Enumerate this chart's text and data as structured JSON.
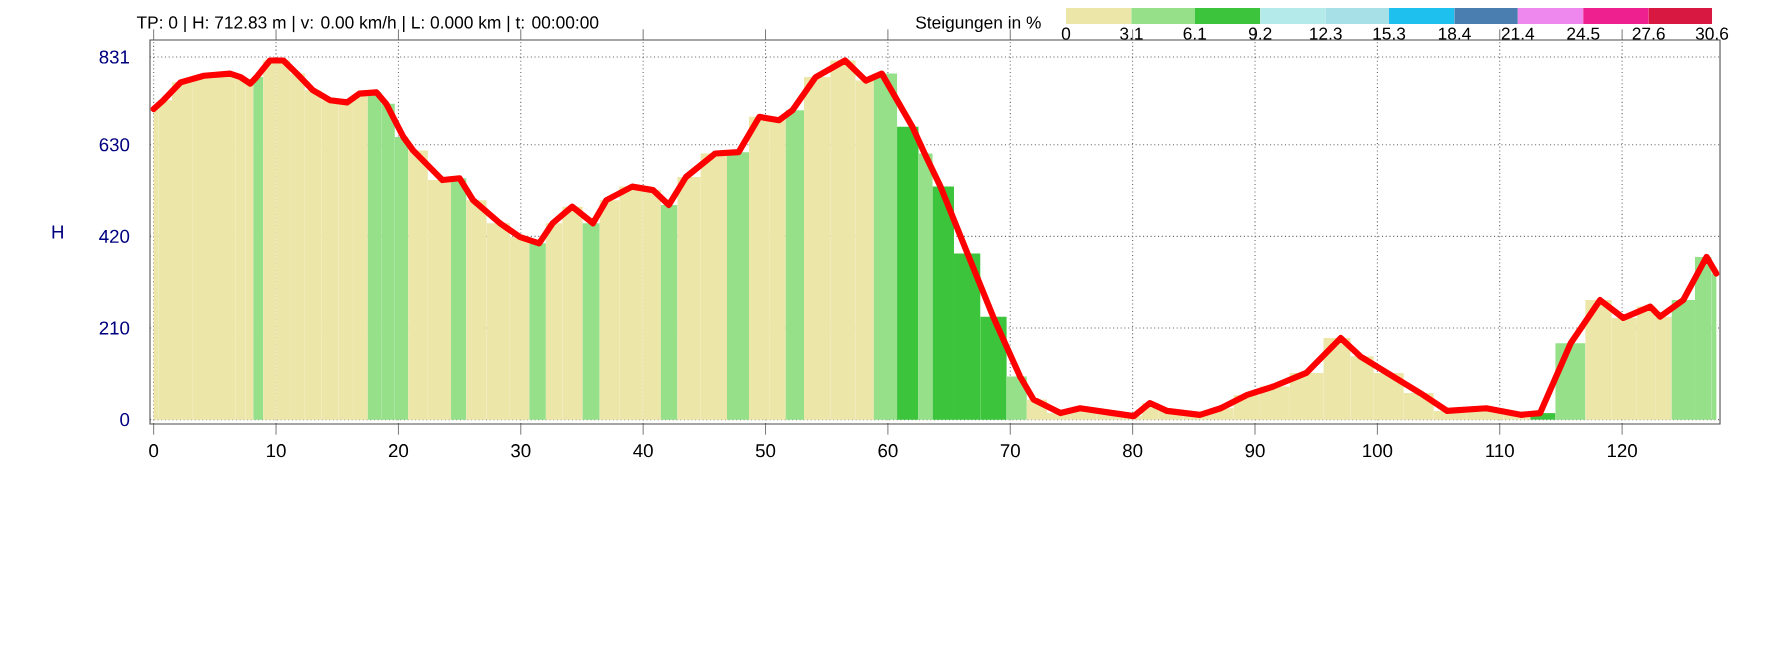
{
  "chart_data": {
    "type": "line",
    "annotations": [
      "TP: 0 | H: 712.83 m | v: 0.00 km/h | L: 0.000 km | t: 00:00:00"
    ],
    "ylabel": "H",
    "x": [
      0,
      0.8,
      2.2,
      4.1,
      6.25,
      7.1,
      7.9,
      8.4,
      9.5,
      10.6,
      11.7,
      13.0,
      14.4,
      15.8,
      16.8,
      18.2,
      19.0,
      20.4,
      21.2,
      23.6,
      25.0,
      26.1,
      28.3,
      29.9,
      31.5,
      32.6,
      34.2,
      35.9,
      37.0,
      39.1,
      40.8,
      42.1,
      43.5,
      45.9,
      47.8,
      49.5,
      51.1,
      52.2,
      54.1,
      56.5,
      58.2,
      59.5,
      62.0,
      63.0,
      64.3,
      66.5,
      68.6,
      70.8,
      71.9,
      74.1,
      75.7,
      78.4,
      80.1,
      81.4,
      82.8,
      85.5,
      87.2,
      89.3,
      91.5,
      94.2,
      97.0,
      98.6,
      100.8,
      103.5,
      105.7,
      108.9,
      111.7,
      113.3,
      115.8,
      118.2,
      120.1,
      122.3,
      123.1,
      125.0,
      126.9,
      127.7
    ],
    "series": [
      {
        "type": "bar",
        "values": [
          712,
          732,
          773,
          788,
          793,
          785,
          770,
          785,
          823,
          823,
          793,
          755,
          732,
          727,
          747,
          750,
          724,
          648,
          617,
          549,
          553,
          503,
          450,
          419,
          404,
          450,
          488,
          450,
          503,
          534,
          526,
          492,
          556,
          610,
          613,
          694,
          686,
          709,
          785,
          823,
          777,
          793,
          671,
          610,
          534,
          381,
          236,
          99,
          46,
          15,
          26,
          15,
          8,
          38,
          20,
          11,
          26,
          56,
          76,
          107,
          187,
          145,
          107,
          61,
          20,
          26,
          11,
          15,
          175,
          274,
          233,
          259,
          236,
          274,
          373,
          335
        ],
        "colors": [
          "#ece6a8",
          "#ece6a8",
          "#ece6a8",
          "#ece6a8",
          "#ece6a8",
          "#ece6a8",
          "#ece6a8",
          "#96e08a",
          "#ece6a8",
          "#ece6a8",
          "#ece6a8",
          "#ece6a8",
          "#ece6a8",
          "#ece6a8",
          "#ece6a8",
          "#96e08a",
          "#96e08a",
          "#96e08a",
          "#ece6a8",
          "#ece6a8",
          "#96e08a",
          "#ece6a8",
          "#ece6a8",
          "#ece6a8",
          "#96e08a",
          "#ece6a8",
          "#ece6a8",
          "#96e08a",
          "#ece6a8",
          "#ece6a8",
          "#ece6a8",
          "#96e08a",
          "#ece6a8",
          "#ece6a8",
          "#96e08a",
          "#ece6a8",
          "#ece6a8",
          "#96e08a",
          "#ece6a8",
          "#ece6a8",
          "#ece6a8",
          "#96e08a",
          "#3cc43c",
          "#96e08a",
          "#3cc43c",
          "#3cc43c",
          "#3cc43c",
          "#96e08a",
          "#ece6a8",
          "#ece6a8",
          "#ece6a8",
          "#ece6a8",
          "#ece6a8",
          "#ece6a8",
          "#ece6a8",
          "#ece6a8",
          "#ece6a8",
          "#ece6a8",
          "#ece6a8",
          "#ece6a8",
          "#ece6a8",
          "#ece6a8",
          "#ece6a8",
          "#ece6a8",
          "#ece6a8",
          "#ece6a8",
          "#ece6a8",
          "#3cc43c",
          "#96e08a",
          "#ece6a8",
          "#ece6a8",
          "#ece6a8",
          "#ece6a8",
          "#96e08a",
          "#96e08a",
          "#96e08a"
        ]
      },
      {
        "color": "#ff0000",
        "values": [
          712,
          732,
          773,
          788,
          793,
          785,
          770,
          785,
          823,
          823,
          793,
          755,
          732,
          727,
          747,
          750,
          724,
          648,
          617,
          549,
          553,
          503,
          450,
          419,
          404,
          450,
          488,
          450,
          503,
          534,
          526,
          492,
          556,
          610,
          613,
          694,
          686,
          709,
          785,
          823,
          777,
          793,
          671,
          610,
          534,
          381,
          236,
          99,
          46,
          15,
          26,
          15,
          8,
          38,
          20,
          11,
          26,
          56,
          76,
          107,
          187,
          145,
          107,
          61,
          20,
          26,
          11,
          15,
          175,
          274,
          233,
          259,
          236,
          274,
          373,
          335
        ]
      }
    ],
    "xlim": [
      -0.3,
      128
    ],
    "ylim": [
      -10,
      870
    ],
    "xticks": [
      0,
      10,
      20,
      30,
      40,
      50,
      60,
      70,
      80,
      90,
      100,
      110,
      120
    ],
    "yticks": [
      0,
      210,
      420,
      630,
      831
    ],
    "grid": true,
    "clabel": "Steigungen in %",
    "clim": [
      0,
      30.6
    ],
    "cticks": [
      0,
      3.1,
      6.1,
      9.2,
      12.3,
      15.3,
      18.4,
      21.4,
      24.5,
      27.6,
      30.6
    ]
  }
}
